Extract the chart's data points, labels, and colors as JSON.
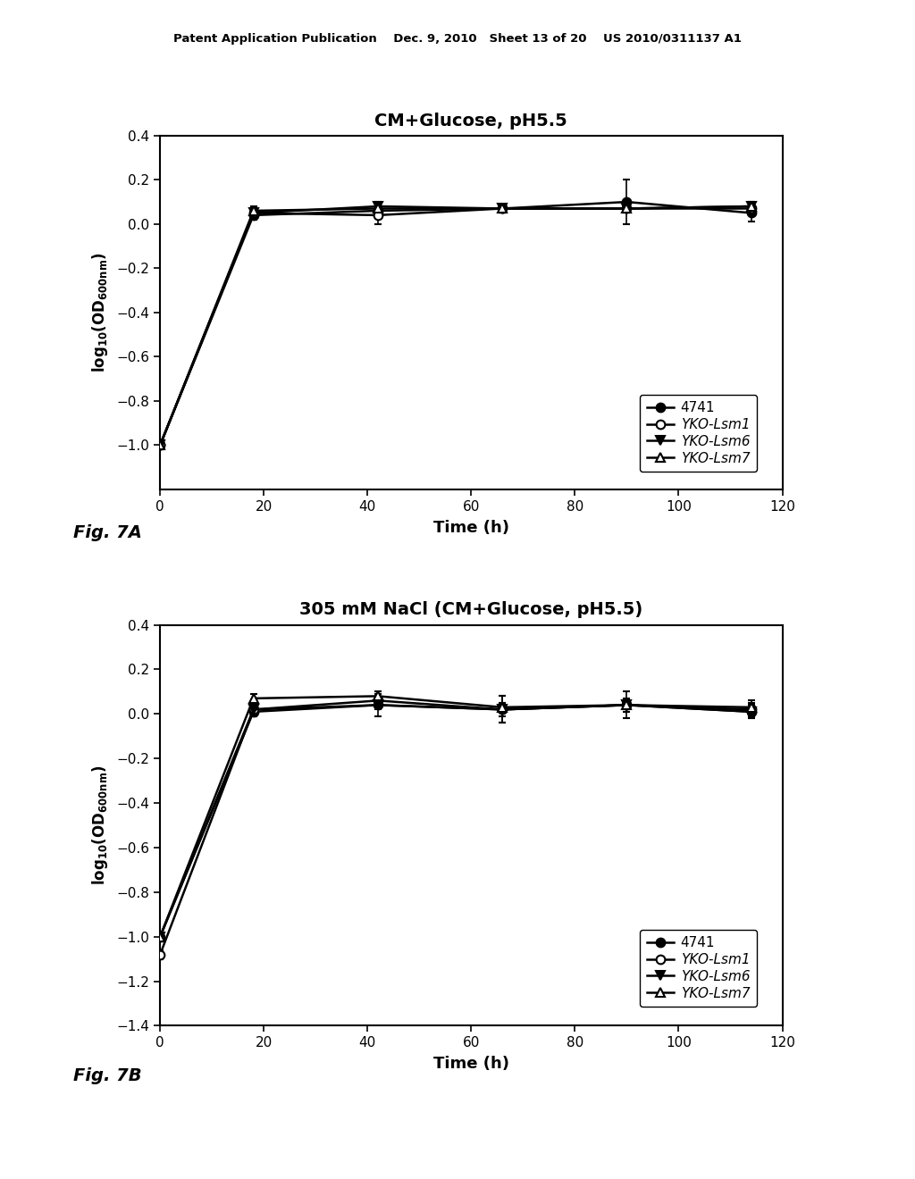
{
  "fig7a": {
    "title": "CM+Glucose, pH5.5",
    "xlabel": "Time (h)",
    "ylim": [
      -1.2,
      0.4
    ],
    "xlim": [
      0,
      120
    ],
    "xticks": [
      0,
      20,
      40,
      60,
      80,
      100,
      120
    ],
    "yticks": [
      -1.0,
      -0.8,
      -0.6,
      -0.4,
      -0.2,
      0.0,
      0.2,
      0.4
    ],
    "series": {
      "4741": {
        "x": [
          0,
          18,
          42,
          66,
          90,
          114
        ],
        "y": [
          -1.0,
          0.04,
          0.06,
          0.07,
          0.1,
          0.05
        ],
        "yerr": [
          0.02,
          0.02,
          0.02,
          0.02,
          0.1,
          0.04
        ],
        "marker": "o",
        "fillstyle": "full"
      },
      "YKO-Lsm1": {
        "x": [
          0,
          18,
          42,
          66,
          90,
          114
        ],
        "y": [
          -1.0,
          0.05,
          0.04,
          0.07,
          0.07,
          0.07
        ],
        "yerr": [
          0.02,
          0.02,
          0.04,
          0.02,
          0.02,
          0.02
        ],
        "marker": "o",
        "fillstyle": "none"
      },
      "YKO-Lsm6": {
        "x": [
          0,
          18,
          42,
          66,
          90,
          114
        ],
        "y": [
          -1.0,
          0.05,
          0.08,
          0.07,
          0.07,
          0.08
        ],
        "yerr": [
          0.02,
          0.02,
          0.02,
          0.02,
          0.02,
          0.02
        ],
        "marker": "v",
        "fillstyle": "full"
      },
      "YKO-Lsm7": {
        "x": [
          0,
          18,
          42,
          66,
          90,
          114
        ],
        "y": [
          -1.0,
          0.06,
          0.07,
          0.07,
          0.07,
          0.08
        ],
        "yerr": [
          0.02,
          0.02,
          0.02,
          0.02,
          0.02,
          0.02
        ],
        "marker": "^",
        "fillstyle": "none"
      }
    }
  },
  "fig7b": {
    "title": "305 mM NaCl (CM+Glucose, pH5.5)",
    "xlabel": "Time (h)",
    "ylim": [
      -1.4,
      0.4
    ],
    "xlim": [
      0,
      120
    ],
    "xticks": [
      0,
      20,
      40,
      60,
      80,
      100,
      120
    ],
    "yticks": [
      -1.4,
      -1.2,
      -1.0,
      -0.8,
      -0.6,
      -0.4,
      -0.2,
      0.0,
      0.2,
      0.4
    ],
    "series": {
      "4741": {
        "x": [
          0,
          18,
          42,
          66,
          90,
          114
        ],
        "y": [
          -1.0,
          0.01,
          0.04,
          0.02,
          0.04,
          0.01
        ],
        "yerr": [
          0.02,
          0.02,
          0.05,
          0.06,
          0.03,
          0.03
        ],
        "marker": "o",
        "fillstyle": "full"
      },
      "YKO-Lsm1": {
        "x": [
          0,
          18,
          42,
          66,
          90,
          114
        ],
        "y": [
          -1.08,
          0.02,
          0.06,
          0.02,
          0.04,
          0.02
        ],
        "yerr": [
          0.02,
          0.02,
          0.03,
          0.06,
          0.06,
          0.04
        ],
        "marker": "o",
        "fillstyle": "none"
      },
      "YKO-Lsm6": {
        "x": [
          0,
          18,
          42,
          66,
          90,
          114
        ],
        "y": [
          -1.0,
          0.02,
          0.04,
          0.02,
          0.04,
          0.01
        ],
        "yerr": [
          0.02,
          0.02,
          0.02,
          0.03,
          0.02,
          0.02
        ],
        "marker": "v",
        "fillstyle": "full"
      },
      "YKO-Lsm7": {
        "x": [
          0,
          18,
          42,
          66,
          90,
          114
        ],
        "y": [
          -1.0,
          0.07,
          0.08,
          0.03,
          0.04,
          0.03
        ],
        "yerr": [
          0.02,
          0.02,
          0.02,
          0.02,
          0.02,
          0.02
        ],
        "marker": "^",
        "fillstyle": "none"
      }
    }
  },
  "header": "Patent Application Publication    Dec. 9, 2010   Sheet 13 of 20    US 2010/0311137 A1",
  "fig7a_label": "Fig. 7A",
  "fig7b_label": "Fig. 7B",
  "series_order": [
    "4741",
    "YKO-Lsm1",
    "YKO-Lsm6",
    "YKO-Lsm7"
  ],
  "bgcolor": "#ffffff"
}
